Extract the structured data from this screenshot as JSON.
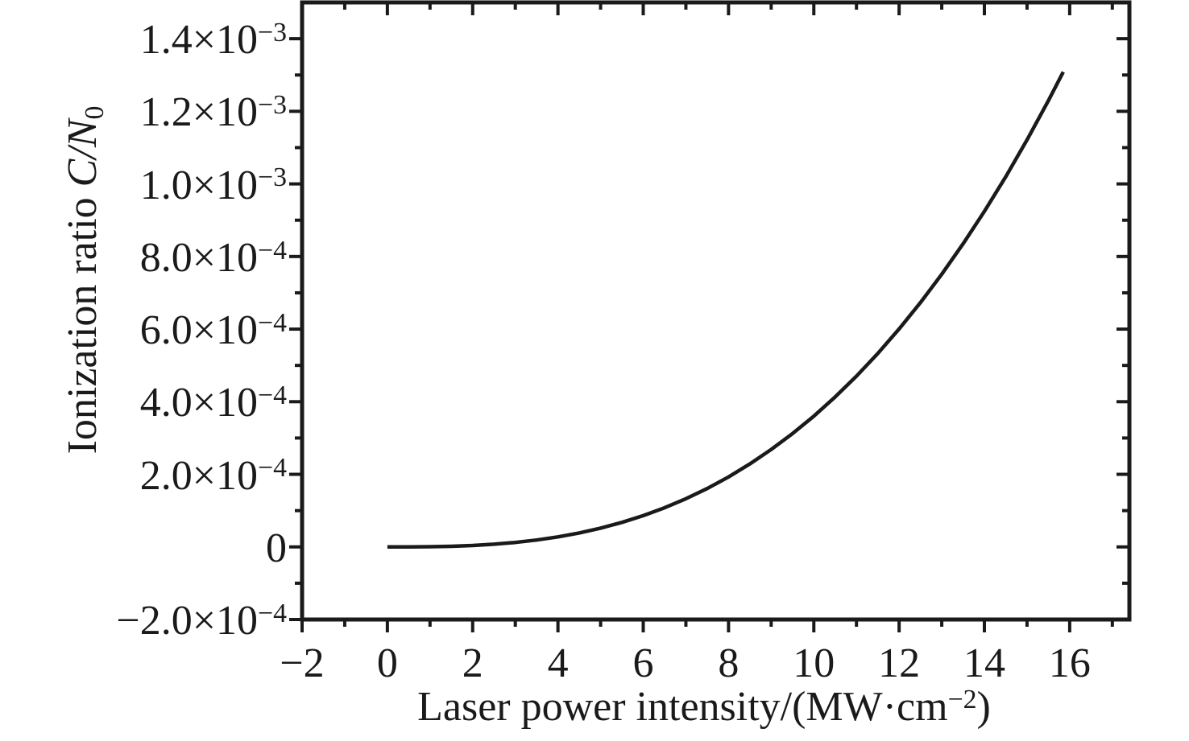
{
  "chart_data": {
    "type": "line",
    "title": "",
    "xlabel": "Laser power intensity/(MW·cm−2)",
    "ylabel": "Ionization ratio C/N0",
    "xlabel_parts": {
      "prefix": "Laser power intensity/(MW·cm",
      "sup": "−2",
      "suffix": ")"
    },
    "ylabel_parts": {
      "prefix": "Ionization ratio ",
      "italic": "C/N",
      "sub": "0"
    },
    "x_axis": {
      "min": -2,
      "max": 17.4,
      "major_ticks": [
        {
          "v": -2,
          "label": "−2"
        },
        {
          "v": 0,
          "label": "0"
        },
        {
          "v": 2,
          "label": "2"
        },
        {
          "v": 4,
          "label": "4"
        },
        {
          "v": 6,
          "label": "6"
        },
        {
          "v": 8,
          "label": "8"
        },
        {
          "v": 10,
          "label": "10"
        },
        {
          "v": 12,
          "label": "12"
        },
        {
          "v": 14,
          "label": "14"
        },
        {
          "v": 16,
          "label": "16"
        }
      ],
      "minor_ticks": [
        -1,
        1,
        3,
        5,
        7,
        9,
        11,
        13,
        15,
        17
      ]
    },
    "y_axis": {
      "min": -0.0002,
      "max": 0.0015,
      "major_ticks": [
        {
          "v": -0.0002,
          "mantissa": "−2.0×10",
          "exponent": "−4"
        },
        {
          "v": 0,
          "mantissa": "0",
          "exponent": ""
        },
        {
          "v": 0.0002,
          "mantissa": "2.0×10",
          "exponent": "−4"
        },
        {
          "v": 0.0004,
          "mantissa": "4.0×10",
          "exponent": "−4"
        },
        {
          "v": 0.0006,
          "mantissa": "6.0×10",
          "exponent": "−4"
        },
        {
          "v": 0.0008,
          "mantissa": "8.0×10",
          "exponent": "−4"
        },
        {
          "v": 0.001,
          "mantissa": "1.0×10",
          "exponent": "−3"
        },
        {
          "v": 0.0012,
          "mantissa": "1.2×10",
          "exponent": "−3"
        },
        {
          "v": 0.0014,
          "mantissa": "1.4×10",
          "exponent": "−3"
        }
      ],
      "minor_ticks": [
        -0.0001,
        0.0001,
        0.0003,
        0.0005,
        0.0007,
        0.0009,
        0.0011,
        0.0013
      ]
    },
    "grid": false,
    "legend": "none",
    "series": [
      {
        "name": "ionization-ratio-vs-laser-power",
        "color": "#1a1a1a",
        "x": [
          0,
          0.5,
          1,
          1.5,
          2,
          2.5,
          3,
          3.5,
          4,
          4.5,
          5,
          5.5,
          6,
          6.5,
          7,
          7.5,
          8,
          8.5,
          9,
          9.5,
          10,
          10.5,
          11,
          11.5,
          12,
          12.5,
          13,
          13.5,
          14,
          14.5,
          15,
          15.5,
          15.85
        ],
        "y": [
          0,
          8.2e-08,
          5.7e-07,
          1.78e-06,
          3.97e-06,
          7.43e-06,
          1.24e-05,
          1.9e-05,
          2.77e-05,
          3.85e-05,
          5.17e-05,
          6.75e-05,
          8.61e-05,
          0.0001078,
          0.0001326,
          0.0001609,
          0.0001928,
          0.0002286,
          0.0002683,
          0.0003122,
          0.0003604,
          0.0004131,
          0.0004705,
          0.0005329,
          0.0006003,
          0.000673,
          0.0007512,
          0.0008349,
          0.0009244,
          0.0010197,
          0.0011213,
          0.0012292,
          0.0013085
        ]
      }
    ]
  },
  "styles": {
    "background": "#ffffff",
    "axis_color": "#1a1a1a",
    "text_color": "#1a1a1a"
  }
}
